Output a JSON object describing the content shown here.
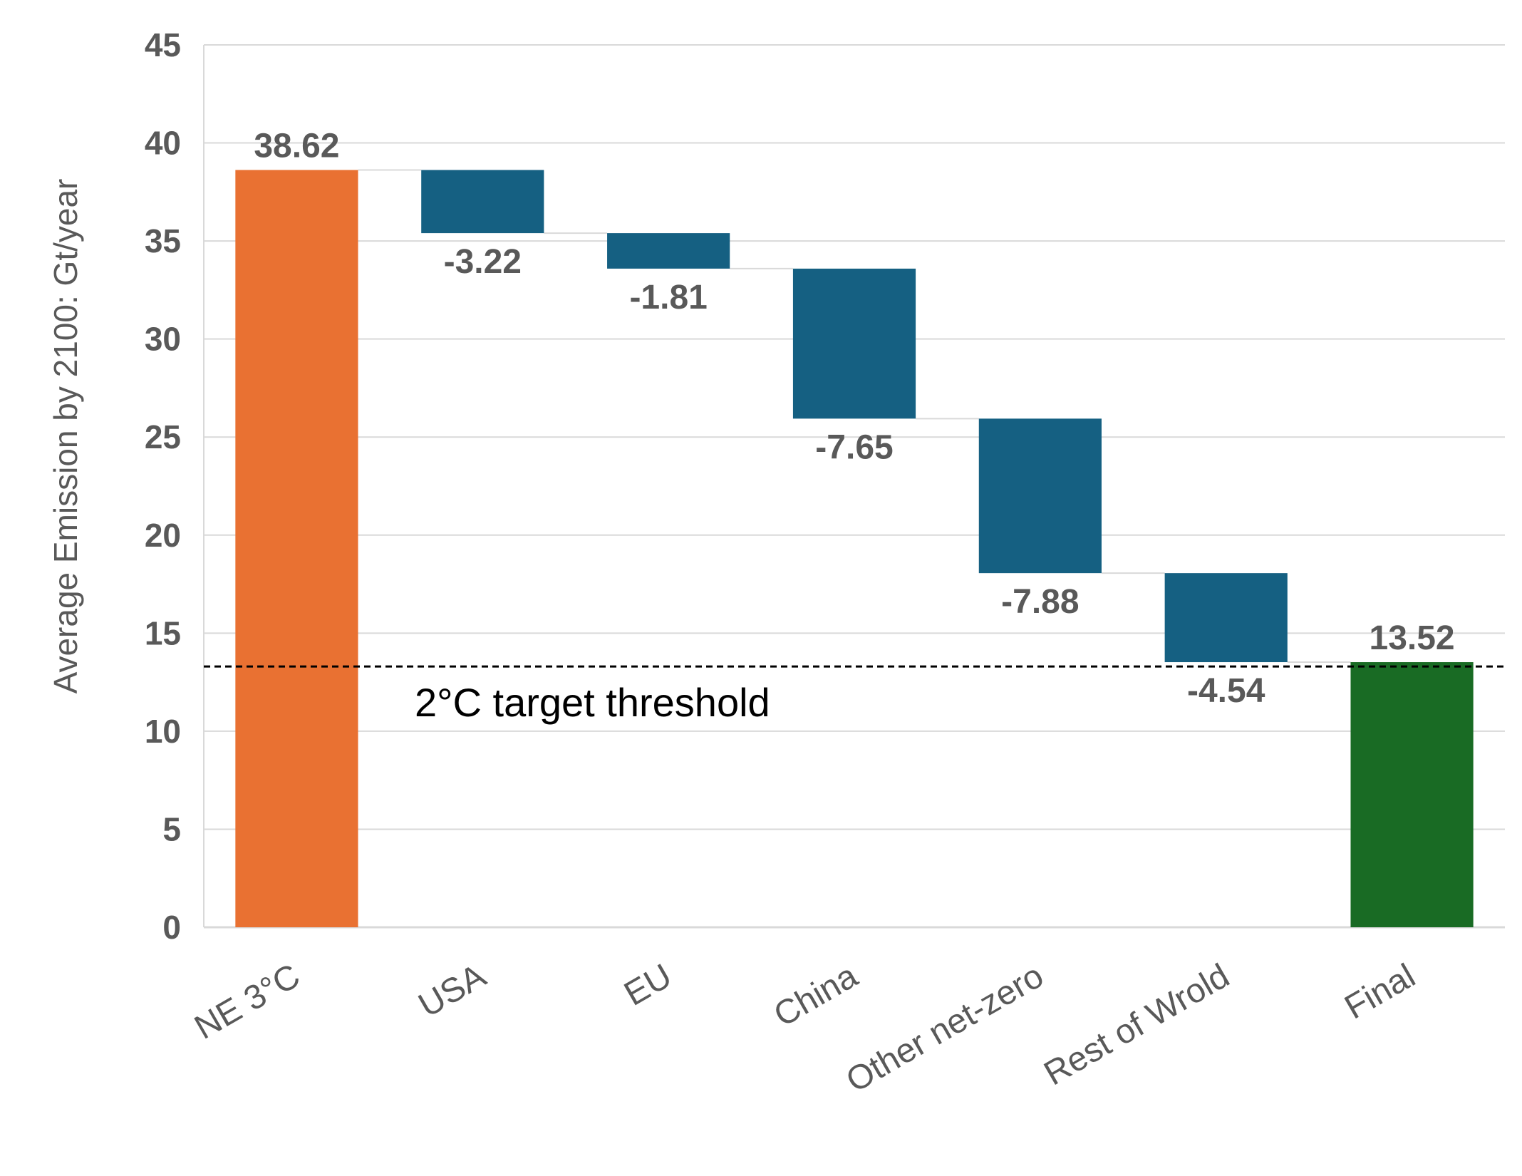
{
  "chart_data": {
    "type": "waterfall",
    "categories": [
      "NE 3°C",
      "USA",
      "EU",
      "China",
      "Other net-zero",
      "Rest of Wrold",
      "Final"
    ],
    "start_value": 38.62,
    "changes": [
      -3.22,
      -1.81,
      -7.65,
      -7.88,
      -4.54
    ],
    "final_value": 13.52,
    "data_labels": [
      "38.62",
      "-3.22",
      "-1.81",
      "-7.65",
      "-7.88",
      "-4.54",
      "13.52"
    ],
    "ylabel": "Average Emission by 2100: Gt/year",
    "ylim": [
      0,
      45
    ],
    "yticks": [
      0,
      5,
      10,
      15,
      20,
      25,
      30,
      35,
      40,
      45
    ],
    "grid": true,
    "threshold": {
      "value": 13.3,
      "label": "2°C target threshold",
      "style": "dashed"
    },
    "colors": {
      "start": "#E97132",
      "change": "#156082",
      "final": "#196B24",
      "grid": "#D9D9D9",
      "connector": "#D9D9D9",
      "threshold": "#000000"
    }
  }
}
